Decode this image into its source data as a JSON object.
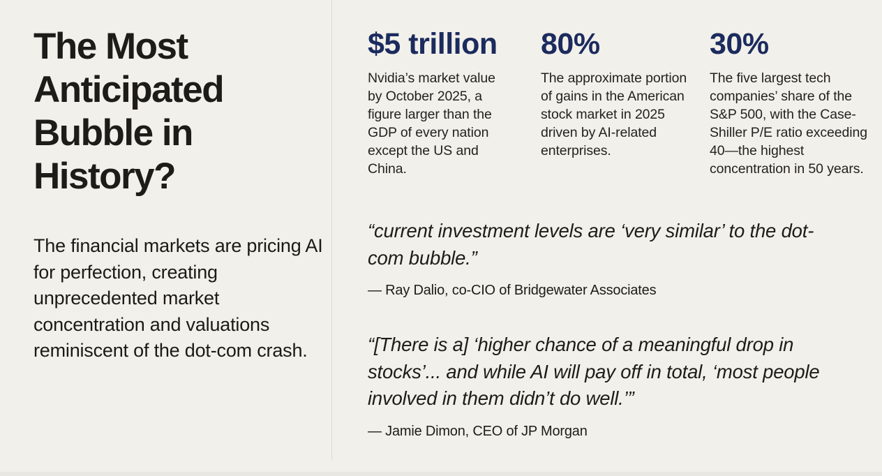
{
  "slide": {
    "title": "The Most Anticipated Bubble in History?",
    "subtitle": "The financial markets are pricing AI for perfection, creating unprecedented market concentration and valuations reminiscent of the dot-com crash.",
    "stats": [
      {
        "value": "$5 trillion",
        "description": "Nvidia’s market value by October 2025, a figure larger than the GDP of every nation except the US and China."
      },
      {
        "value": "80%",
        "description": "The approximate portion of gains in the American stock market in 2025 driven by AI-related enterprises."
      },
      {
        "value": "30%",
        "description": "The five largest tech companies’ share of the S&P 500, with the Case-Shiller P/E ratio exceeding 40—the highest concentration in 50 years."
      }
    ],
    "quotes": [
      {
        "text": "“current investment levels are ‘very similar’ to the dot-com bubble.”",
        "attribution": "— Ray Dalio, co-CIO of Bridgewater Associates"
      },
      {
        "text": "“[There is a] ‘higher chance of a meaningful drop in stocks’... and while AI will pay off in total, ‘most people involved in them didn’t do well.’”",
        "attribution": "— Jamie Dimon, CEO of JP Morgan"
      }
    ],
    "colors": {
      "background": "#f2f0ea",
      "accent_navy": "#1b2b5e",
      "text_dark": "#1d1c18",
      "divider": "#dcdbd4"
    }
  }
}
